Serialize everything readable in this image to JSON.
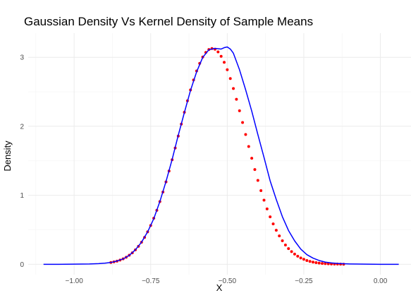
{
  "chart_data": {
    "type": "scatter",
    "title": "Gaussian Density Vs Kernel Density of Sample Means",
    "xlabel": "X",
    "ylabel": "Density",
    "xlim": [
      -1.15,
      0.1
    ],
    "ylim": [
      -0.15,
      3.35
    ],
    "x_ticks": [
      -1.0,
      -0.75,
      -0.5,
      -0.25,
      0.0
    ],
    "x_tick_labels": [
      "−1.00",
      "−0.75",
      "−0.50",
      "−0.25",
      "0.00"
    ],
    "y_ticks": [
      0,
      1,
      2,
      3
    ],
    "y_tick_labels": [
      "0",
      "1",
      "2",
      "3"
    ],
    "grid": true,
    "series": [
      {
        "kind": "points",
        "color": "#ff0000",
        "x": [
          -0.88,
          -0.87,
          -0.86,
          -0.85,
          -0.84,
          -0.83,
          -0.82,
          -0.81,
          -0.8,
          -0.79,
          -0.78,
          -0.77,
          -0.76,
          -0.75,
          -0.74,
          -0.73,
          -0.72,
          -0.71,
          -0.7,
          -0.69,
          -0.68,
          -0.67,
          -0.66,
          -0.65,
          -0.64,
          -0.63,
          -0.62,
          -0.61,
          -0.6,
          -0.59,
          -0.58,
          -0.57,
          -0.56,
          -0.55,
          -0.54,
          -0.53,
          -0.52,
          -0.51,
          -0.5,
          -0.49,
          -0.48,
          -0.47,
          -0.46,
          -0.45,
          -0.44,
          -0.43,
          -0.42,
          -0.41,
          -0.4,
          -0.39,
          -0.38,
          -0.37,
          -0.36,
          -0.35,
          -0.34,
          -0.33,
          -0.32,
          -0.31,
          -0.3,
          -0.29,
          -0.28,
          -0.27,
          -0.26,
          -0.25,
          -0.24,
          -0.23,
          -0.22,
          -0.21,
          -0.2,
          -0.19,
          -0.18,
          -0.17,
          -0.16,
          -0.15,
          -0.14,
          -0.13,
          -0.12
        ],
        "y": [
          0.026,
          0.035,
          0.046,
          0.061,
          0.079,
          0.102,
          0.131,
          0.166,
          0.209,
          0.26,
          0.32,
          0.39,
          0.471,
          0.563,
          0.667,
          0.782,
          0.909,
          1.047,
          1.195,
          1.352,
          1.516,
          1.686,
          1.859,
          2.033,
          2.204,
          2.37,
          2.527,
          2.672,
          2.802,
          2.913,
          3.004,
          3.071,
          3.113,
          3.128,
          3.117,
          3.079,
          3.015,
          2.928,
          2.82,
          2.692,
          2.548,
          2.392,
          2.226,
          2.055,
          1.881,
          1.708,
          1.537,
          1.373,
          1.216,
          1.068,
          0.93,
          0.803,
          0.688,
          0.585,
          0.493,
          0.412,
          0.341,
          0.28,
          0.228,
          0.184,
          0.148,
          0.117,
          0.092,
          0.072,
          0.055,
          0.042,
          0.032,
          0.024,
          0.018,
          0.013,
          0.01,
          0.007,
          0.005,
          0.004,
          0.003,
          0.002,
          0.001
        ]
      },
      {
        "kind": "line",
        "color": "#0000ff",
        "x": [
          -1.1,
          -1.05,
          -1.0,
          -0.95,
          -0.92,
          -0.9,
          -0.88,
          -0.86,
          -0.84,
          -0.82,
          -0.8,
          -0.78,
          -0.76,
          -0.74,
          -0.72,
          -0.7,
          -0.68,
          -0.66,
          -0.64,
          -0.62,
          -0.6,
          -0.58,
          -0.56,
          -0.54,
          -0.52,
          -0.51,
          -0.5,
          -0.49,
          -0.48,
          -0.46,
          -0.44,
          -0.42,
          -0.4,
          -0.38,
          -0.36,
          -0.34,
          -0.32,
          -0.3,
          -0.28,
          -0.26,
          -0.24,
          -0.22,
          -0.2,
          -0.18,
          -0.16,
          -0.14,
          -0.12,
          -0.1,
          -0.05,
          0.0,
          0.03,
          0.06
        ],
        "y": [
          0.0,
          0.0,
          0.002,
          0.005,
          0.01,
          0.016,
          0.026,
          0.048,
          0.078,
          0.13,
          0.21,
          0.32,
          0.47,
          0.66,
          0.91,
          1.2,
          1.52,
          1.87,
          2.2,
          2.52,
          2.79,
          3.0,
          3.11,
          3.13,
          3.12,
          3.14,
          3.15,
          3.12,
          3.06,
          2.82,
          2.53,
          2.22,
          1.88,
          1.55,
          1.21,
          0.94,
          0.69,
          0.49,
          0.34,
          0.22,
          0.14,
          0.09,
          0.055,
          0.032,
          0.02,
          0.012,
          0.008,
          0.005,
          0.002,
          0.0,
          0.0,
          0.0
        ]
      }
    ]
  }
}
